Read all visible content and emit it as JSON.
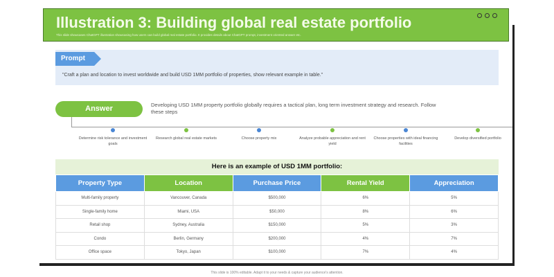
{
  "header": {
    "title": "Illustration 3: Building global real estate portfolio",
    "subtitle": "This slide showcases ChatGPT illustration showcasing how users can build global real estate portfolio. It provides details about ChatGPT prompt, investment oriented answer etc."
  },
  "prompt": {
    "label": "Prompt",
    "text": "\"Craft a plan and location to invest worldwide and build USD 1MM portfolio of properties, show relevant  example in table.\""
  },
  "answer": {
    "label": "Answer",
    "text": "Developing USD 1MM property portfolio globally requires a tactical plan, long term investment  strategy and research. Follow these steps"
  },
  "steps": [
    {
      "label": "Determine risk tolerance and investment goals",
      "color": "#4a86d4"
    },
    {
      "label": "Research global real estate markets",
      "color": "#7dc242"
    },
    {
      "label": "Choose property mix",
      "color": "#4a86d4"
    },
    {
      "label": "Analyze probable appreciation and rent yield",
      "color": "#7dc242"
    },
    {
      "label": "Choose properties with ideal financing facilities",
      "color": "#4a86d4"
    },
    {
      "label": "Develop diversified portfolio",
      "color": "#7dc242"
    }
  ],
  "table": {
    "title": "Here is an example of USD 1MM portfolio:",
    "columns": [
      "Property Type",
      "Location",
      "Purchase Price",
      "Rental Yield",
      "Appreciation"
    ],
    "header_colors": [
      "#5b9be0",
      "#7dc242",
      "#5b9be0",
      "#7dc242",
      "#5b9be0"
    ],
    "rows": [
      [
        "Multi-family property",
        "Vancouver,  Canada",
        "$500,000",
        "6%",
        "5%"
      ],
      [
        "Single-family  home",
        "Miami, USA",
        "$50,000",
        "8%",
        "6%"
      ],
      [
        "Retail shop",
        "Sydney, Australia",
        "$150,000",
        "5%",
        "3%"
      ],
      [
        "Condo",
        "Berlin, Germany",
        "$200,000",
        "4%",
        "7%"
      ],
      [
        "Office space",
        "Tokyo, Japan",
        "$100,000",
        "7%",
        "4%"
      ]
    ]
  },
  "footer": "This slide is 100% editable. Adapt it to your needs & capture your audience's attention."
}
